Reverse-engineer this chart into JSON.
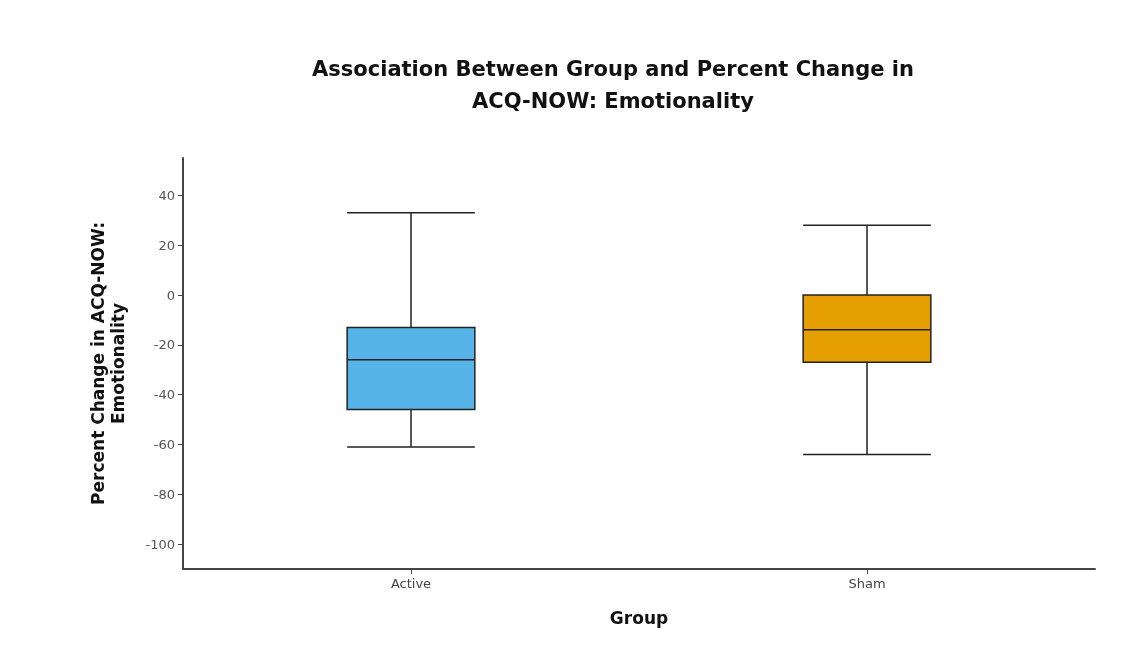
{
  "chart_data": {
    "type": "box",
    "title": "Association Between Group and Percent Change in\nACQ-NOW: Emotionality",
    "xlabel": "Group",
    "ylabel": "Percent Change in ACQ-NOW:\nEmotionality",
    "categories": [
      "Active",
      "Sham"
    ],
    "colors": [
      "#56b4e9",
      "#e69f00"
    ],
    "boxes": [
      {
        "low": -61,
        "q1": -46,
        "median": -26,
        "q3": -13,
        "high": 33
      },
      {
        "low": -64,
        "q1": -27,
        "median": -14,
        "q3": 0,
        "high": 28
      }
    ],
    "ylim": [
      -110,
      55
    ],
    "yticks": [
      -100,
      -80,
      -60,
      -40,
      -20,
      0,
      20,
      40
    ],
    "grid": false
  }
}
